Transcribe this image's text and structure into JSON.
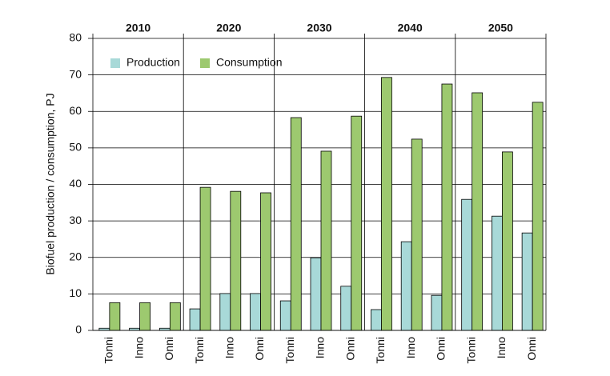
{
  "chart_data": {
    "type": "bar",
    "ylabel": "Biofuel production / consumption, PJ",
    "groups": [
      "2010",
      "2020",
      "2030",
      "2040",
      "2050"
    ],
    "categories": [
      "Tonni",
      "Inno",
      "Onni",
      "Tonni",
      "Inno",
      "Onni",
      "Tonni",
      "Inno",
      "Onni",
      "Tonni",
      "Inno",
      "Onni",
      "Tonni",
      "Inno",
      "Onni"
    ],
    "series": [
      {
        "name": "Production",
        "color": "#a8d9d8",
        "values": [
          0.6,
          0.6,
          0.6,
          5.9,
          10.1,
          10.1,
          8.1,
          19.9,
          12.1,
          5.7,
          24.3,
          9.6,
          35.9,
          31.3,
          26.7
        ]
      },
      {
        "name": "Consumption",
        "color": "#9dc96f",
        "values": [
          7.6,
          7.6,
          7.6,
          39.2,
          38.1,
          37.7,
          58.3,
          49.1,
          58.7,
          69.3,
          52.4,
          67.5,
          65.1,
          48.9,
          62.5
        ]
      }
    ],
    "ylim": [
      0,
      80
    ],
    "yticks": [
      0,
      10,
      20,
      30,
      40,
      50,
      60,
      70,
      80
    ],
    "grid": true,
    "legend": "top-left"
  }
}
